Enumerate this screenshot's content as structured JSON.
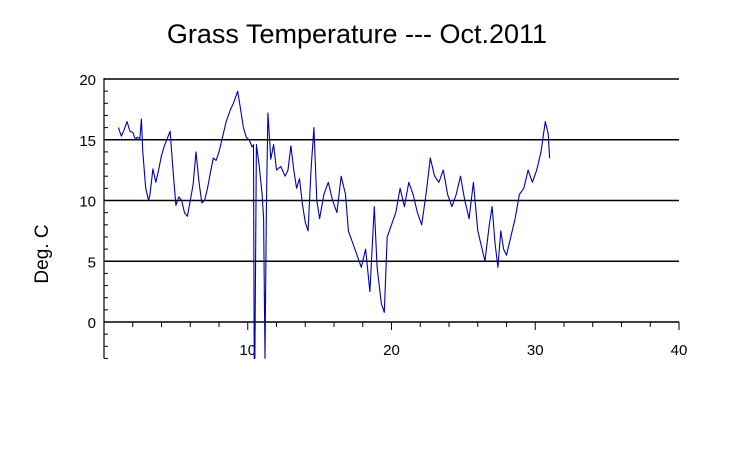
{
  "chart_data": {
    "type": "line",
    "title": "Grass Temperature --- Oct.2011",
    "xlabel": "",
    "ylabel": "Deg. C",
    "xlim": [
      0,
      40
    ],
    "ylim": [
      -3,
      20
    ],
    "x_ticks": [
      10,
      20,
      30,
      40
    ],
    "y_ticks": [
      0,
      5,
      10,
      15,
      20
    ],
    "grid": "horizontal lines at y = 5, 10, 15, 20",
    "legend": "none",
    "line_color": "#0000b4",
    "series": [
      {
        "values": [
          [
            1.0,
            16.0
          ],
          [
            1.2,
            15.3
          ],
          [
            1.4,
            15.8
          ],
          [
            1.6,
            16.5
          ],
          [
            1.8,
            15.7
          ],
          [
            2.0,
            15.6
          ],
          [
            2.2,
            15.0
          ],
          [
            2.3,
            15.2
          ],
          [
            2.5,
            15.1
          ],
          [
            2.6,
            16.7
          ],
          [
            2.7,
            14.0
          ],
          [
            2.9,
            11.0
          ],
          [
            3.1,
            10.0
          ],
          [
            3.2,
            10.5
          ],
          [
            3.4,
            12.6
          ],
          [
            3.6,
            11.5
          ],
          [
            3.8,
            12.5
          ],
          [
            4.0,
            13.7
          ],
          [
            4.2,
            14.5
          ],
          [
            4.4,
            15.1
          ],
          [
            4.6,
            15.7
          ],
          [
            4.8,
            12.5
          ],
          [
            5.0,
            9.6
          ],
          [
            5.2,
            10.3
          ],
          [
            5.4,
            10.0
          ],
          [
            5.6,
            9.0
          ],
          [
            5.8,
            8.7
          ],
          [
            6.0,
            10.0
          ],
          [
            6.2,
            11.3
          ],
          [
            6.4,
            14.0
          ],
          [
            6.6,
            11.6
          ],
          [
            6.8,
            9.8
          ],
          [
            7.0,
            10.0
          ],
          [
            7.2,
            11.0
          ],
          [
            7.4,
            12.3
          ],
          [
            7.6,
            13.5
          ],
          [
            7.8,
            13.3
          ],
          [
            8.0,
            14.0
          ],
          [
            8.2,
            15.0
          ],
          [
            8.5,
            16.5
          ],
          [
            8.8,
            17.5
          ],
          [
            9.0,
            18.0
          ],
          [
            9.3,
            19.0
          ],
          [
            9.5,
            17.5
          ],
          [
            9.7,
            16.0
          ],
          [
            9.9,
            15.2
          ],
          [
            10.1,
            15.0
          ],
          [
            10.3,
            14.4
          ],
          [
            10.4,
            14.6
          ],
          [
            10.45,
            -3.0
          ],
          [
            10.5,
            -3.0
          ],
          [
            10.6,
            14.6
          ],
          [
            10.8,
            12.8
          ],
          [
            11.0,
            10.5
          ],
          [
            11.1,
            8.5
          ],
          [
            11.2,
            -3.0
          ],
          [
            11.3,
            9.5
          ],
          [
            11.4,
            17.2
          ],
          [
            11.6,
            13.4
          ],
          [
            11.8,
            14.6
          ],
          [
            12.0,
            12.5
          ],
          [
            12.3,
            12.8
          ],
          [
            12.6,
            12.0
          ],
          [
            12.8,
            12.5
          ],
          [
            13.0,
            14.5
          ],
          [
            13.2,
            12.5
          ],
          [
            13.4,
            11.0
          ],
          [
            13.6,
            11.8
          ],
          [
            13.8,
            9.7
          ],
          [
            14.0,
            8.2
          ],
          [
            14.2,
            7.5
          ],
          [
            14.4,
            12.5
          ],
          [
            14.6,
            16.0
          ],
          [
            14.8,
            10.0
          ],
          [
            15.0,
            8.5
          ],
          [
            15.3,
            10.5
          ],
          [
            15.6,
            11.5
          ],
          [
            15.9,
            10.0
          ],
          [
            16.2,
            9.0
          ],
          [
            16.5,
            12.0
          ],
          [
            16.8,
            10.5
          ],
          [
            17.0,
            7.5
          ],
          [
            17.3,
            6.5
          ],
          [
            17.6,
            5.5
          ],
          [
            17.9,
            4.5
          ],
          [
            18.2,
            6.0
          ],
          [
            18.5,
            2.5
          ],
          [
            18.8,
            9.5
          ],
          [
            19.0,
            4.5
          ],
          [
            19.3,
            1.5
          ],
          [
            19.5,
            0.8
          ],
          [
            19.7,
            7.0
          ],
          [
            20.0,
            8.0
          ],
          [
            20.3,
            9.0
          ],
          [
            20.6,
            11.0
          ],
          [
            20.9,
            9.5
          ],
          [
            21.2,
            11.5
          ],
          [
            21.5,
            10.5
          ],
          [
            21.8,
            9.0
          ],
          [
            22.1,
            8.0
          ],
          [
            22.4,
            10.5
          ],
          [
            22.7,
            13.5
          ],
          [
            23.0,
            12.0
          ],
          [
            23.3,
            11.5
          ],
          [
            23.6,
            12.5
          ],
          [
            23.9,
            10.5
          ],
          [
            24.2,
            9.5
          ],
          [
            24.5,
            10.5
          ],
          [
            24.8,
            12.0
          ],
          [
            25.1,
            10.0
          ],
          [
            25.4,
            8.5
          ],
          [
            25.7,
            11.5
          ],
          [
            26.0,
            7.5
          ],
          [
            26.3,
            6.0
          ],
          [
            26.5,
            5.0
          ],
          [
            26.8,
            8.0
          ],
          [
            27.0,
            9.5
          ],
          [
            27.2,
            6.5
          ],
          [
            27.4,
            4.5
          ],
          [
            27.6,
            7.5
          ],
          [
            27.8,
            6.0
          ],
          [
            28.0,
            5.5
          ],
          [
            28.3,
            7.0
          ],
          [
            28.6,
            8.5
          ],
          [
            28.9,
            10.5
          ],
          [
            29.2,
            11.0
          ],
          [
            29.5,
            12.5
          ],
          [
            29.8,
            11.5
          ],
          [
            30.1,
            12.5
          ],
          [
            30.4,
            14.0
          ],
          [
            30.7,
            16.5
          ],
          [
            30.9,
            15.5
          ],
          [
            31.0,
            13.5
          ]
        ]
      }
    ]
  }
}
